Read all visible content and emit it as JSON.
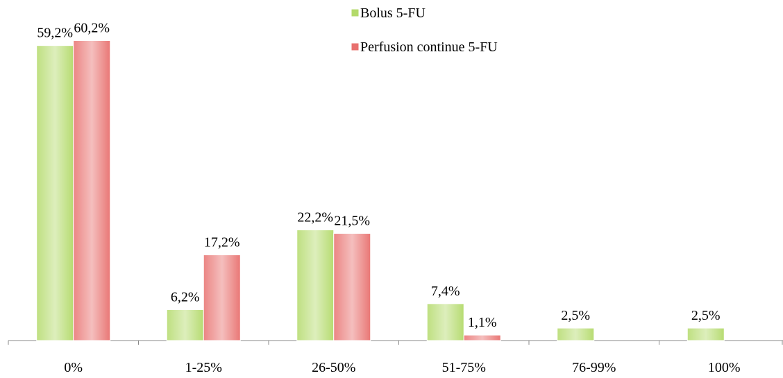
{
  "chart_data": {
    "type": "bar",
    "categories": [
      "0%",
      "1-25%",
      "26-50%",
      "51-75%",
      "76-99%",
      "100%"
    ],
    "series": [
      {
        "name": "Bolus 5-FU",
        "color": "#b3da6a",
        "values": [
          59.2,
          6.2,
          22.2,
          7.4,
          2.5,
          2.5
        ],
        "value_labels": [
          "59,2%",
          "6,2%",
          "22,2%",
          "7,4%",
          "2,5%",
          "2,5%"
        ]
      },
      {
        "name": "Perfusion continue 5-FU",
        "color": "#e8706e",
        "values": [
          60.2,
          17.2,
          21.5,
          1.1,
          null,
          null
        ],
        "value_labels": [
          "60,2%",
          "17,2%",
          "21,5%",
          "1,1%",
          null,
          null
        ]
      }
    ],
    "ylim": [
      0,
      65
    ],
    "legend": "top"
  }
}
